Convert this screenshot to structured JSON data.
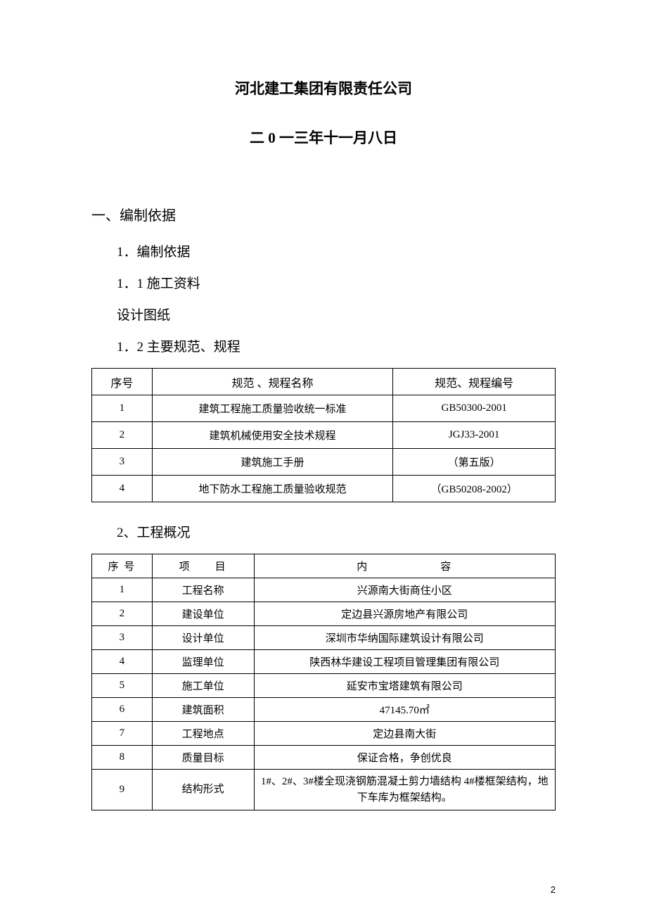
{
  "header": {
    "line1": "河北建工集团有限责任公司",
    "line2": "二 0 一三年十一月八日"
  },
  "sections": {
    "s1": "一、编制依据",
    "s1_1": "1．编制依据",
    "s1_1_1": "1．1 施工资料",
    "plain1": "设计图纸",
    "s1_1_2": "1．2 主要规范、规程",
    "s2": "2、工程概况"
  },
  "table1": {
    "columns": [
      "序号",
      "规范 、规程名称",
      "规范、规程编号"
    ],
    "col_widths": [
      "13%",
      "52%",
      "35%"
    ],
    "rows": [
      [
        "1",
        "建筑工程施工质量验收统一标准",
        "GB50300-2001"
      ],
      [
        "2",
        "建筑机械使用安全技术规程",
        "JGJ33-2001"
      ],
      [
        "3",
        "建筑施工手册",
        "（第五版）"
      ],
      [
        "4",
        "地下防水工程施工质量验收规范",
        "（GB50208-2002）"
      ]
    ]
  },
  "table2": {
    "columns": [
      "序 号",
      "项　　目",
      "内　　　　　　容"
    ],
    "col_widths": [
      "13%",
      "22%",
      "65%"
    ],
    "rows": [
      [
        "1",
        "工程名称",
        "兴源南大街商住小区"
      ],
      [
        "2",
        "建设单位",
        "定边县兴源房地产有限公司"
      ],
      [
        "3",
        "设计单位",
        "深圳市华纳国际建筑设计有限公司"
      ],
      [
        "4",
        "监理单位",
        "陕西林华建设工程项目管理集团有限公司"
      ],
      [
        "5",
        "施工单位",
        "延安市宝塔建筑有限公司"
      ],
      [
        "6",
        "建筑面积",
        "47145.70㎡"
      ],
      [
        "7",
        "工程地点",
        "定边县南大街"
      ],
      [
        "8",
        "质量目标",
        "保证合格，争创优良"
      ],
      [
        "9",
        "结构形式",
        "1#、2#、3#楼全现浇钢筋混凝土剪力墙结构 4#楼框架结构，地下车库为框架结构。"
      ]
    ]
  },
  "page_number": "2"
}
